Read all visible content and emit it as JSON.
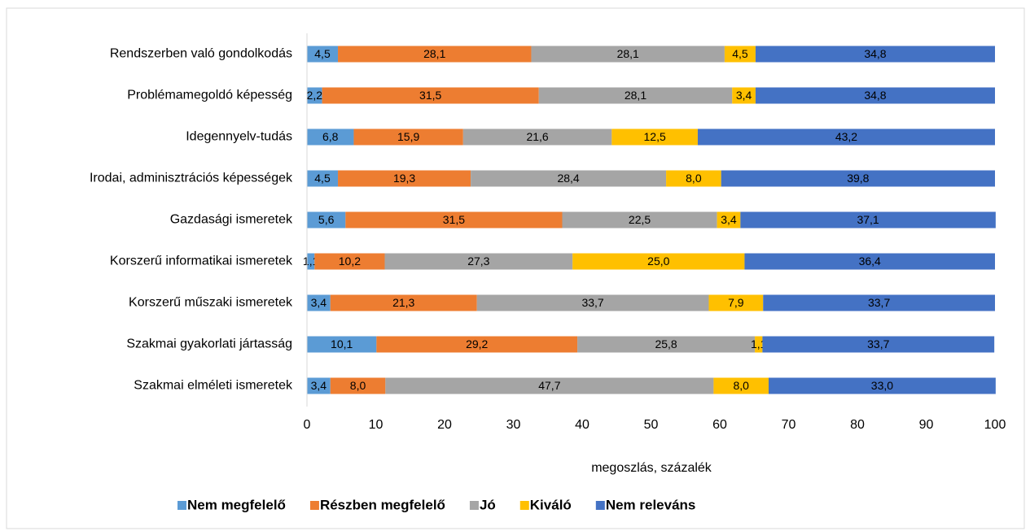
{
  "chart_data": {
    "type": "stacked-barh",
    "categories": [
      "Rendszerben való gondolkodás",
      "Problémamegoldó képesség",
      "Idegennyelv-tudás",
      "Irodai, adminisztrációs képességek",
      "Gazdasági ismeretek",
      "Korszerű informatikai ismeretek",
      "Korszerű műszaki ismeretek",
      "Szakmai gyakorlati jártasság",
      "Szakmai elméleti ismeretek"
    ],
    "series": [
      {
        "name": "Nem megfelelő",
        "color": "#5b9bd5",
        "values": [
          4.5,
          2.2,
          6.8,
          4.5,
          5.6,
          1.1,
          3.4,
          10.1,
          3.4
        ],
        "value_labels": [
          "4,5",
          "2,2",
          "6,8",
          "4,5",
          "5,6",
          "1,1",
          "3,4",
          "10,1",
          "3,4"
        ]
      },
      {
        "name": "Részben megfelelő",
        "color": "#ed7d31",
        "values": [
          28.1,
          31.5,
          15.9,
          19.3,
          31.5,
          10.2,
          21.3,
          29.2,
          8.0
        ],
        "value_labels": [
          "28,1",
          "31,5",
          "15,9",
          "19,3",
          "31,5",
          "10,2",
          "21,3",
          "29,2",
          "8,0"
        ]
      },
      {
        "name": "Jó",
        "color": "#a5a5a5",
        "values": [
          28.1,
          28.1,
          21.6,
          28.4,
          22.5,
          27.3,
          33.7,
          25.8,
          47.7
        ],
        "value_labels": [
          "28,1",
          "28,1",
          "21,6",
          "28,4",
          "22,5",
          "27,3",
          "33,7",
          "25,8",
          "47,7"
        ]
      },
      {
        "name": "Kiváló",
        "color": "#ffc000",
        "values": [
          4.5,
          3.4,
          12.5,
          8.0,
          3.4,
          25.0,
          7.9,
          1.1,
          8.0
        ],
        "value_labels": [
          "4,5",
          "3,4",
          "12,5",
          "8,0",
          "3,4",
          "25,0",
          "7,9",
          "1,1",
          "8,0"
        ]
      },
      {
        "name": "Nem releváns",
        "color": "#4472c4",
        "values": [
          34.8,
          34.8,
          43.2,
          39.8,
          37.1,
          36.4,
          33.7,
          33.7,
          33.0
        ],
        "value_labels": [
          "34,8",
          "34,8",
          "43,2",
          "39,8",
          "37,1",
          "36,4",
          "33,7",
          "33,7",
          "33,0"
        ]
      }
    ],
    "xlabel": "megoszlás, százalék",
    "xlim": [
      0,
      100
    ],
    "xticks": [
      0,
      10,
      20,
      30,
      40,
      50,
      60,
      70,
      80,
      90,
      100
    ]
  }
}
